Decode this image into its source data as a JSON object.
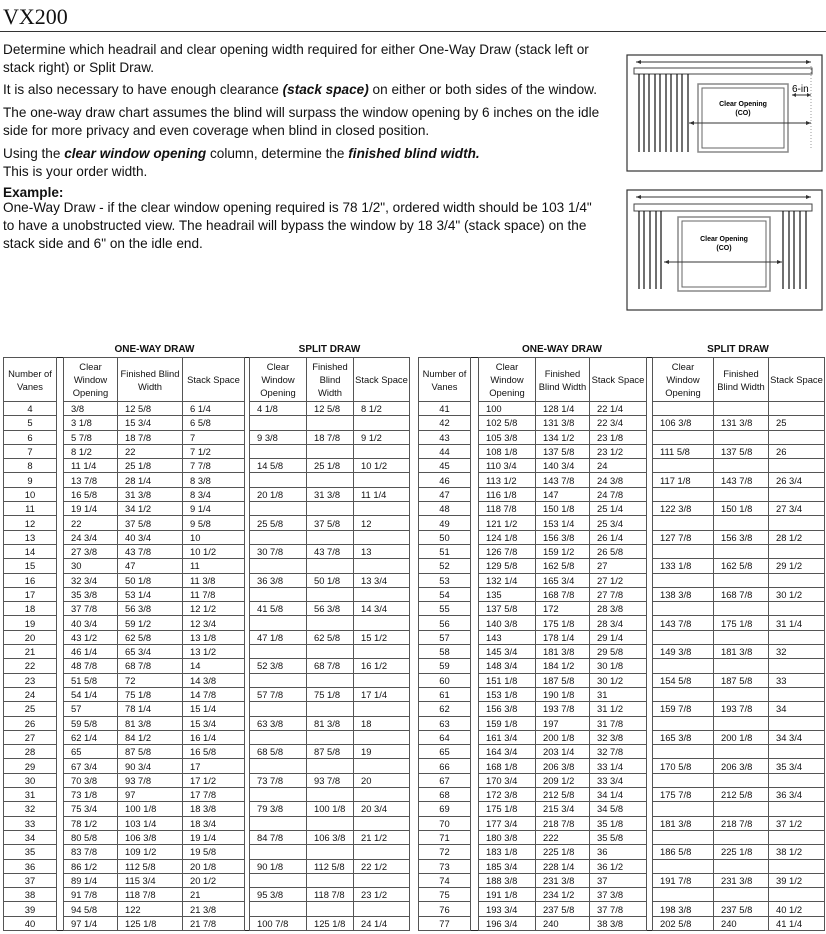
{
  "title": "VX200",
  "intro": {
    "p1": "Determine which headrail and clear opening width required for either One-Way Draw (stack left or stack right) or Split Draw.",
    "p2_a": "It is also necessary to have enough clearance ",
    "p2_b": "(stack space)",
    "p2_c": " on either or both sides of the window.",
    "p3": "The one-way draw chart assumes the blind will surpass the window opening by 6 inches on the idle side for more privacy and even coverage when blind in closed position.",
    "p4_a": "Using the ",
    "p4_b": "clear window opening",
    "p4_c": " column, determine the ",
    "p4_d": "finished blind width.",
    "p4_e": "This is your order width.",
    "example_heading": "Example:",
    "example_text": "One-Way Draw - if the clear window opening required is 78 1/2\", ordered width should be 103 1/4\" to have a unobstructed view. The headrail will bypass the window by 18 3/4\" (stack space) on the stack side and 6\" on the idle end."
  },
  "diagrams": {
    "one_way": {
      "label_line1": "Clear Opening",
      "label_line2": "(CO)",
      "offset_label": "6-in"
    },
    "split": {
      "label_line1": "Clear Opening",
      "label_line2": "(CO)"
    }
  },
  "table": {
    "section_one_way": "ONE-WAY DRAW",
    "section_split": "SPLIT DRAW",
    "headers": {
      "vanes": "Number of Vanes",
      "cwo": "Clear Window Opening",
      "fbw": "Finished Blind Width",
      "ss": "Stack Space"
    },
    "left_rows": [
      [
        "4",
        "3/8",
        "12 5/8",
        "6 1/4",
        "4 1/8",
        "12 5/8",
        "8 1/2"
      ],
      [
        "5",
        "3 1/8",
        "15 3/4",
        "6 5/8",
        "",
        "",
        ""
      ],
      [
        "6",
        "5 7/8",
        "18 7/8",
        "7",
        "9 3/8",
        "18 7/8",
        "9 1/2"
      ],
      [
        "7",
        "8 1/2",
        "22",
        "7 1/2",
        "",
        "",
        ""
      ],
      [
        "8",
        "11 1/4",
        "25 1/8",
        "7 7/8",
        "14 5/8",
        "25 1/8",
        "10 1/2"
      ],
      [
        "9",
        "13 7/8",
        "28 1/4",
        "8 3/8",
        "",
        "",
        ""
      ],
      [
        "10",
        "16 5/8",
        "31 3/8",
        "8 3/4",
        "20 1/8",
        "31 3/8",
        "11 1/4"
      ],
      [
        "11",
        "19 1/4",
        "34 1/2",
        "9 1/4",
        "",
        "",
        ""
      ],
      [
        "12",
        "22",
        "37 5/8",
        "9 5/8",
        "25 5/8",
        "37 5/8",
        "12"
      ],
      [
        "13",
        "24 3/4",
        "40 3/4",
        "10",
        "",
        "",
        ""
      ],
      [
        "14",
        "27 3/8",
        "43 7/8",
        "10 1/2",
        "30 7/8",
        "43 7/8",
        "13"
      ],
      [
        "15",
        "30",
        "47",
        "11",
        "",
        "",
        ""
      ],
      [
        "16",
        "32 3/4",
        "50 1/8",
        "11 3/8",
        "36 3/8",
        "50 1/8",
        "13 3/4"
      ],
      [
        "17",
        "35 3/8",
        "53 1/4",
        "11 7/8",
        "",
        "",
        ""
      ],
      [
        "18",
        "37 7/8",
        "56 3/8",
        "12 1/2",
        "41 5/8",
        "56 3/8",
        "14 3/4"
      ],
      [
        "19",
        "40 3/4",
        "59 1/2",
        "12 3/4",
        "",
        "",
        ""
      ],
      [
        "20",
        "43 1/2",
        "62 5/8",
        "13 1/8",
        "47 1/8",
        "62 5/8",
        "15 1/2"
      ],
      [
        "21",
        "46 1/4",
        "65 3/4",
        "13 1/2",
        "",
        "",
        ""
      ],
      [
        "22",
        "48 7/8",
        "68 7/8",
        "14",
        "52 3/8",
        "68 7/8",
        "16 1/2"
      ],
      [
        "23",
        "51 5/8",
        "72",
        "14 3/8",
        "",
        "",
        ""
      ],
      [
        "24",
        "54 1/4",
        "75 1/8",
        "14 7/8",
        "57 7/8",
        "75 1/8",
        "17 1/4"
      ],
      [
        "25",
        "57",
        "78 1/4",
        "15 1/4",
        "",
        "",
        ""
      ],
      [
        "26",
        "59 5/8",
        "81 3/8",
        "15 3/4",
        "63 3/8",
        "81 3/8",
        "18"
      ],
      [
        "27",
        "62 1/4",
        "84 1/2",
        "16 1/4",
        "",
        "",
        ""
      ],
      [
        "28",
        "65",
        "87 5/8",
        "16 5/8",
        "68 5/8",
        "87 5/8",
        "19"
      ],
      [
        "29",
        "67 3/4",
        "90 3/4",
        "17",
        "",
        "",
        ""
      ],
      [
        "30",
        "70 3/8",
        "93 7/8",
        "17 1/2",
        "73 7/8",
        "93 7/8",
        "20"
      ],
      [
        "31",
        "73 1/8",
        "97",
        "17 7/8",
        "",
        "",
        ""
      ],
      [
        "32",
        "75 3/4",
        "100 1/8",
        "18 3/8",
        "79 3/8",
        "100 1/8",
        "20 3/4"
      ],
      [
        "33",
        "78 1/2",
        "103 1/4",
        "18 3/4",
        "",
        "",
        ""
      ],
      [
        "34",
        "80 5/8",
        "106 3/8",
        "19 1/4",
        "84 7/8",
        "106 3/8",
        "21 1/2"
      ],
      [
        "35",
        "83 7/8",
        "109 1/2",
        "19 5/8",
        "",
        "",
        ""
      ],
      [
        "36",
        "86 1/2",
        "112 5/8",
        "20 1/8",
        "90 1/8",
        "112 5/8",
        "22 1/2"
      ],
      [
        "37",
        "89 1/4",
        "115 3/4",
        "20 1/2",
        "",
        "",
        ""
      ],
      [
        "38",
        "91 7/8",
        "118 7/8",
        "21",
        "95 3/8",
        "118 7/8",
        "23 1/2"
      ],
      [
        "39",
        "94 5/8",
        "122",
        "21 3/8",
        "",
        "",
        ""
      ],
      [
        "40",
        "97 1/4",
        "125 1/8",
        "21 7/8",
        "100 7/8",
        "125 1/8",
        "24 1/4"
      ]
    ],
    "right_rows": [
      [
        "41",
        "100",
        "128 1/4",
        "22 1/4",
        "",
        "",
        ""
      ],
      [
        "42",
        "102 5/8",
        "131 3/8",
        "22 3/4",
        "106 3/8",
        "131 3/8",
        "25"
      ],
      [
        "43",
        "105 3/8",
        "134 1/2",
        "23 1/8",
        "",
        "",
        ""
      ],
      [
        "44",
        "108 1/8",
        "137 5/8",
        "23 1/2",
        "111 5/8",
        "137 5/8",
        "26"
      ],
      [
        "45",
        "110 3/4",
        "140 3/4",
        "24",
        "",
        "",
        ""
      ],
      [
        "46",
        "113 1/2",
        "143 7/8",
        "24 3/8",
        "117 1/8",
        "143 7/8",
        "26 3/4"
      ],
      [
        "47",
        "116 1/8",
        "147",
        "24 7/8",
        "",
        "",
        ""
      ],
      [
        "48",
        "118 7/8",
        "150 1/8",
        "25 1/4",
        "122 3/8",
        "150 1/8",
        "27 3/4"
      ],
      [
        "49",
        "121 1/2",
        "153 1/4",
        "25 3/4",
        "",
        "",
        ""
      ],
      [
        "50",
        "124 1/8",
        "156 3/8",
        "26 1/4",
        "127 7/8",
        "156 3/8",
        "28 1/2"
      ],
      [
        "51",
        "126 7/8",
        "159 1/2",
        "26 5/8",
        "",
        "",
        ""
      ],
      [
        "52",
        "129 5/8",
        "162 5/8",
        "27",
        "133 1/8",
        "162 5/8",
        "29 1/2"
      ],
      [
        "53",
        "132 1/4",
        "165 3/4",
        "27 1/2",
        "",
        "",
        ""
      ],
      [
        "54",
        "135",
        "168 7/8",
        "27 7/8",
        "138 3/8",
        "168 7/8",
        "30 1/2"
      ],
      [
        "55",
        "137 5/8",
        "172",
        "28 3/8",
        "",
        "",
        ""
      ],
      [
        "56",
        "140 3/8",
        "175 1/8",
        "28 3/4",
        "143 7/8",
        "175 1/8",
        "31 1/4"
      ],
      [
        "57",
        "143",
        "178 1/4",
        "29 1/4",
        "",
        "",
        ""
      ],
      [
        "58",
        "145 3/4",
        "181 3/8",
        "29 5/8",
        "149 3/8",
        "181 3/8",
        "32"
      ],
      [
        "59",
        "148 3/4",
        "184 1/2",
        "30 1/8",
        "",
        "",
        ""
      ],
      [
        "60",
        "151 1/8",
        "187 5/8",
        "30 1/2",
        "154 5/8",
        "187 5/8",
        "33"
      ],
      [
        "61",
        "153 1/8",
        "190 1/8",
        "31",
        "",
        "",
        ""
      ],
      [
        "62",
        "156 3/8",
        "193 7/8",
        "31 1/2",
        "159 7/8",
        "193 7/8",
        "34"
      ],
      [
        "63",
        "159 1/8",
        "197",
        "31 7/8",
        "",
        "",
        ""
      ],
      [
        "64",
        "161 3/4",
        "200 1/8",
        "32 3/8",
        "165 3/8",
        "200 1/8",
        "34 3/4"
      ],
      [
        "65",
        "164 3/4",
        "203 1/4",
        "32 7/8",
        "",
        "",
        ""
      ],
      [
        "66",
        "168 1/8",
        "206 3/8",
        "33 1/4",
        "170 5/8",
        "206 3/8",
        "35 3/4"
      ],
      [
        "67",
        "170 3/4",
        "209 1/2",
        "33 3/4",
        "",
        "",
        ""
      ],
      [
        "68",
        "172 3/8",
        "212 5/8",
        "34 1/4",
        "175 7/8",
        "212 5/8",
        "36 3/4"
      ],
      [
        "69",
        "175 1/8",
        "215 3/4",
        "34 5/8",
        "",
        "",
        ""
      ],
      [
        "70",
        "177 3/4",
        "218 7/8",
        "35 1/8",
        "181 3/8",
        "218 7/8",
        "37 1/2"
      ],
      [
        "71",
        "180 3/8",
        "222",
        "35 5/8",
        "",
        "",
        ""
      ],
      [
        "72",
        "183 1/8",
        "225 1/8",
        "36",
        "186 5/8",
        "225 1/8",
        "38 1/2"
      ],
      [
        "73",
        "185 3/4",
        "228 1/4",
        "36 1/2",
        "",
        "",
        ""
      ],
      [
        "74",
        "188 3/8",
        "231 3/8",
        "37",
        "191 7/8",
        "231 3/8",
        "39 1/2"
      ],
      [
        "75",
        "191 1/8",
        "234 1/2",
        "37 3/8",
        "",
        "",
        ""
      ],
      [
        "76",
        "193 3/4",
        "237 5/8",
        "37 7/8",
        "198 3/8",
        "237 5/8",
        "40 1/2"
      ],
      [
        "77",
        "196 3/4",
        "240",
        "38 3/8",
        "202 5/8",
        "240",
        "41 1/4"
      ]
    ]
  }
}
